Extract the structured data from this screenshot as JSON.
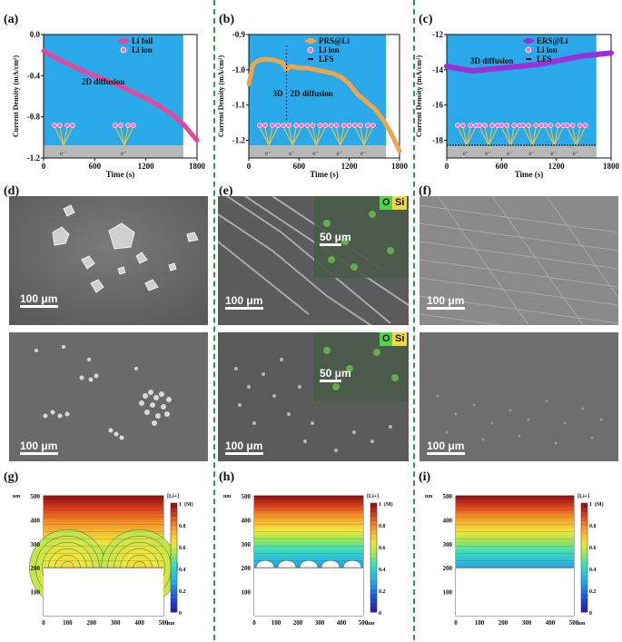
{
  "panels": {
    "a": {
      "label": "(a)"
    },
    "b": {
      "label": "(b)"
    },
    "c": {
      "label": "(c)"
    },
    "d": {
      "label": "(d)"
    },
    "e": {
      "label": "(e)"
    },
    "f": {
      "label": "(f)"
    },
    "g": {
      "label": "(g)"
    },
    "h": {
      "label": "(h)"
    },
    "i": {
      "label": "(i)"
    }
  },
  "colors": {
    "divider": "#2e9a4a",
    "plot_bg": "#29a9ea",
    "li_foil": "#e7469b",
    "prs": "#f0a44e",
    "ers": "#9b30d9"
  },
  "chart_data": [
    {
      "type": "line",
      "title": "",
      "xlabel": "Time (s)",
      "ylabel": "Current Density (mA/cm²)",
      "xlim": [
        0,
        1800
      ],
      "ylim": [
        -1.2,
        0.0
      ],
      "xticks": [
        "0",
        "600",
        "1200",
        "1800"
      ],
      "yticks": [
        "0.0",
        "-0.4",
        "-0.8",
        "-1.2"
      ],
      "legend": [
        "Li foil",
        "Li ion"
      ],
      "annotation": "2D diffusion",
      "series": [
        {
          "name": "Li foil",
          "x": [
            0,
            150,
            300,
            450,
            600,
            750,
            900,
            1050,
            1200,
            1350,
            1500,
            1650,
            1800
          ],
          "values": [
            -0.16,
            -0.23,
            -0.29,
            -0.35,
            -0.4,
            -0.45,
            -0.5,
            -0.56,
            -0.62,
            -0.69,
            -0.77,
            -0.88,
            -1.03
          ]
        }
      ],
      "schematic_label": "e⁻"
    },
    {
      "type": "line",
      "title": "",
      "xlabel": "Time (s)",
      "ylabel": "Current Density (mA/cm²)",
      "xlim": [
        0,
        1800
      ],
      "ylim": [
        -1.25,
        -0.9
      ],
      "xticks": [
        "0",
        "600",
        "1200",
        "1800"
      ],
      "yticks": [
        "-0.9",
        "-1.0",
        "-1.1",
        "-1.2"
      ],
      "legend": [
        "PRS@Li",
        "Li ion",
        "LFS"
      ],
      "annotation_left": "3D",
      "annotation_right": "2D diffusion",
      "series": [
        {
          "name": "PRS@Li",
          "x": [
            0,
            50,
            100,
            150,
            200,
            300,
            400,
            450,
            500,
            600,
            700,
            800,
            900,
            1000,
            1100,
            1200,
            1300,
            1400,
            1500,
            1600,
            1700,
            1800
          ],
          "values": [
            -1.04,
            -0.985,
            -0.975,
            -0.972,
            -0.97,
            -0.972,
            -0.98,
            -1.0,
            -0.99,
            -0.995,
            -0.995,
            -1.0,
            -1.005,
            -1.01,
            -1.02,
            -1.04,
            -1.07,
            -1.09,
            -1.11,
            -1.14,
            -1.18,
            -1.23
          ]
        }
      ],
      "schematic_label": "e⁻"
    },
    {
      "type": "line",
      "title": "",
      "xlabel": "Time (s)",
      "ylabel": "Current Density (mA/cm²)",
      "xlim": [
        0,
        1800
      ],
      "ylim": [
        -19,
        -12
      ],
      "xticks": [
        "0",
        "600",
        "1200",
        "1800"
      ],
      "yticks": [
        "-12",
        "-14",
        "-16",
        "-18"
      ],
      "legend": [
        "ERS@Li",
        "Li ion",
        "LFS"
      ],
      "annotation": "3D diffusion",
      "series": [
        {
          "name": "ERS@Li",
          "x": [
            0,
            100,
            200,
            300,
            400,
            500,
            600,
            700,
            800,
            900,
            1000,
            1100,
            1200,
            1300,
            1400,
            1500,
            1600,
            1700,
            1800
          ],
          "values": [
            -13.8,
            -13.9,
            -14.0,
            -14.05,
            -14.0,
            -13.95,
            -13.9,
            -13.85,
            -13.8,
            -13.75,
            -13.7,
            -13.6,
            -13.5,
            -13.4,
            -13.3,
            -13.2,
            -13.15,
            -13.1,
            -13.05
          ]
        }
      ],
      "schematic_label": "e⁻"
    },
    {
      "type": "heatmap",
      "xlabel": "nm",
      "ylabel": "nm",
      "xticks": [
        "0",
        "100",
        "200",
        "300",
        "400",
        "500"
      ],
      "yticks": [
        "100",
        "200",
        "300",
        "400",
        "500"
      ],
      "colorbar_title": "[Li+]",
      "colorbar_unit": "(M)",
      "colorbar_ticks": [
        "1",
        "0.8",
        "0.6",
        "0.4",
        "0.2",
        "0"
      ]
    },
    {
      "type": "heatmap",
      "xlabel": "nm",
      "ylabel": "nm",
      "xticks": [
        "0",
        "100",
        "200",
        "300",
        "400",
        "500"
      ],
      "yticks": [
        "100",
        "200",
        "300",
        "400",
        "500"
      ],
      "colorbar_title": "[Li+]",
      "colorbar_unit": "(M)",
      "colorbar_ticks": [
        "1",
        "0.8",
        "0.6",
        "0.4",
        "0.2",
        "0"
      ]
    },
    {
      "type": "heatmap",
      "xlabel": "nm",
      "ylabel": "nm",
      "xticks": [
        "0",
        "100",
        "200",
        "300",
        "400",
        "500"
      ],
      "yticks": [
        "100",
        "200",
        "300",
        "400",
        "500"
      ],
      "colorbar_title": "[Li+]",
      "colorbar_unit": "(M)",
      "colorbar_ticks": [
        "1",
        "0.8",
        "0.6",
        "0.4",
        "0.2",
        "0"
      ]
    }
  ],
  "sem": {
    "d_top_scale": "100 μm",
    "d_bottom_scale": "100 μm",
    "e_top_scale": "100 μm",
    "e_top_inset_scale": "50 μm",
    "e_bottom_scale": "100 μm",
    "e_bottom_inset_scale": "50 μm",
    "f_top_scale": "100 μm",
    "f_bottom_scale": "100 μm",
    "element_o": "O",
    "element_si": "Si"
  }
}
